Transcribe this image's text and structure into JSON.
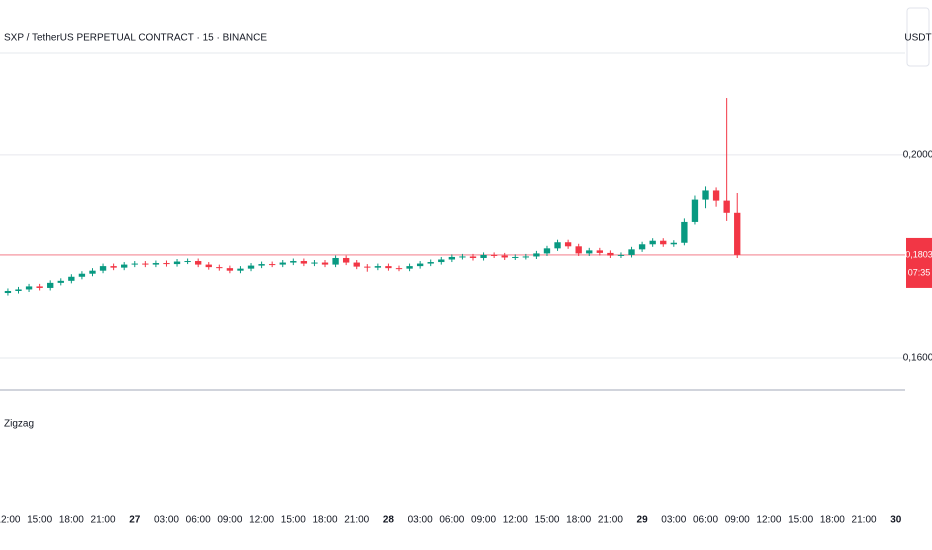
{
  "chart_data": {
    "type": "candlestick",
    "title": "SXP / TetherUS PERPETUAL CONTRACT · 15 · BINANCE",
    "currency": "USDT",
    "indicator": "Zigzag",
    "up_color": "#089981",
    "down_color": "#f23645",
    "x": [
      0,
      1,
      2,
      3,
      4,
      5,
      6,
      7,
      8,
      9,
      10,
      11,
      12,
      13,
      14,
      15,
      16,
      17,
      18,
      19,
      20,
      21,
      22,
      23,
      24,
      25,
      26,
      27,
      28,
      29,
      30,
      31,
      32,
      33,
      34,
      35,
      36,
      37,
      38,
      39,
      40,
      41,
      42,
      43,
      44,
      45,
      46,
      47,
      48,
      49,
      50,
      51,
      52,
      53,
      54,
      55,
      56,
      57,
      58,
      59,
      60,
      61,
      62,
      63,
      64,
      65,
      66,
      67,
      68,
      69
    ],
    "open": [
      0.1728,
      0.1732,
      0.1735,
      0.1741,
      0.1738,
      0.1748,
      0.1752,
      0.176,
      0.1766,
      0.1772,
      0.1781,
      0.1778,
      0.1784,
      0.1786,
      0.1784,
      0.1787,
      0.1785,
      0.179,
      0.1791,
      0.1784,
      0.1779,
      0.1777,
      0.1772,
      0.1776,
      0.1782,
      0.1785,
      0.1784,
      0.1788,
      0.1791,
      0.1786,
      0.1788,
      0.1784,
      0.1797,
      0.1788,
      0.178,
      0.1778,
      0.1781,
      0.1777,
      0.1776,
      0.1781,
      0.1786,
      0.1789,
      0.1794,
      0.1799,
      0.18,
      0.1797,
      0.1803,
      0.1802,
      0.1798,
      0.1799,
      0.18,
      0.1806,
      0.1816,
      0.1828,
      0.182,
      0.1806,
      0.1812,
      0.1807,
      0.1802,
      0.1803,
      0.1814,
      0.1824,
      0.1831,
      0.1824,
      0.1827,
      0.1868,
      0.1912,
      0.193,
      0.191,
      0.1886
    ],
    "high": [
      0.1737,
      0.174,
      0.1746,
      0.1746,
      0.1753,
      0.1757,
      0.1765,
      0.1771,
      0.1777,
      0.1786,
      0.1786,
      0.1789,
      0.1791,
      0.1791,
      0.1792,
      0.1792,
      0.1795,
      0.1796,
      0.1796,
      0.1789,
      0.1784,
      0.1782,
      0.1781,
      0.1787,
      0.179,
      0.179,
      0.1793,
      0.1796,
      0.1796,
      0.1793,
      0.1793,
      0.1802,
      0.1802,
      0.1793,
      0.1785,
      0.1786,
      0.1786,
      0.1782,
      0.1786,
      0.1791,
      0.1794,
      0.1799,
      0.1804,
      0.1805,
      0.1805,
      0.1808,
      0.1808,
      0.1807,
      0.1804,
      0.1805,
      0.1811,
      0.1821,
      0.1833,
      0.1833,
      0.1825,
      0.1817,
      0.1817,
      0.1812,
      0.1808,
      0.1819,
      0.1829,
      0.1836,
      0.1836,
      0.1832,
      0.1875,
      0.192,
      0.1938,
      0.1936,
      0.2112,
      0.1925
    ],
    "low": [
      0.1723,
      0.1727,
      0.173,
      0.1733,
      0.1733,
      0.1743,
      0.1747,
      0.1755,
      0.1761,
      0.1767,
      0.1773,
      0.1773,
      0.1779,
      0.1779,
      0.1779,
      0.178,
      0.178,
      0.1785,
      0.1779,
      0.1774,
      0.1772,
      0.1767,
      0.1767,
      0.1771,
      0.1777,
      0.1779,
      0.1779,
      0.1783,
      0.1781,
      0.1781,
      0.1779,
      0.1779,
      0.1783,
      0.1775,
      0.177,
      0.1773,
      0.1772,
      0.1771,
      0.1771,
      0.1776,
      0.1781,
      0.1784,
      0.1789,
      0.1794,
      0.1792,
      0.1792,
      0.1797,
      0.1793,
      0.1793,
      0.1794,
      0.1795,
      0.1801,
      0.1811,
      0.1815,
      0.1801,
      0.1801,
      0.1802,
      0.1797,
      0.1797,
      0.1798,
      0.1809,
      0.1819,
      0.1819,
      0.1819,
      0.1822,
      0.1863,
      0.1895,
      0.1898,
      0.187,
      0.1797
    ],
    "close": [
      0.1732,
      0.1735,
      0.1741,
      0.1738,
      0.1748,
      0.1752,
      0.176,
      0.1766,
      0.1772,
      0.1781,
      0.1778,
      0.1784,
      0.1786,
      0.1784,
      0.1787,
      0.1785,
      0.179,
      0.1791,
      0.1784,
      0.1779,
      0.1777,
      0.1772,
      0.1776,
      0.1782,
      0.1785,
      0.1784,
      0.1788,
      0.1791,
      0.1786,
      0.1788,
      0.1784,
      0.1797,
      0.1788,
      0.178,
      0.1778,
      0.1781,
      0.1777,
      0.1776,
      0.1781,
      0.1786,
      0.1789,
      0.1794,
      0.1799,
      0.18,
      0.1797,
      0.1803,
      0.1802,
      0.1798,
      0.1799,
      0.18,
      0.1806,
      0.1816,
      0.1828,
      0.182,
      0.1806,
      0.1812,
      0.1807,
      0.1802,
      0.1803,
      0.1814,
      0.1824,
      0.1831,
      0.1824,
      0.1827,
      0.1868,
      0.1912,
      0.193,
      0.191,
      0.1886,
      0.1803
    ],
    "xlim": [
      -0.75,
      84.4
    ],
    "ylim": [
      0.1537,
      0.2246
    ],
    "xticks": [
      {
        "value": 0,
        "label": "12:00"
      },
      {
        "value": 3,
        "label": "15:00"
      },
      {
        "value": 6,
        "label": "18:00"
      },
      {
        "value": 9,
        "label": "21:00"
      },
      {
        "value": 12,
        "label": "27"
      },
      {
        "value": 15,
        "label": "03:00"
      },
      {
        "value": 18,
        "label": "06:00"
      },
      {
        "value": 21,
        "label": "09:00"
      },
      {
        "value": 24,
        "label": "12:00"
      },
      {
        "value": 27,
        "label": "15:00"
      },
      {
        "value": 30,
        "label": "18:00"
      },
      {
        "value": 33,
        "label": "21:00"
      },
      {
        "value": 36,
        "label": "28"
      },
      {
        "value": 39,
        "label": "03:00"
      },
      {
        "value": 42,
        "label": "06:00"
      },
      {
        "value": 45,
        "label": "09:00"
      },
      {
        "value": 48,
        "label": "12:00"
      },
      {
        "value": 51,
        "label": "15:00"
      },
      {
        "value": 54,
        "label": "18:00"
      },
      {
        "value": 57,
        "label": "21:00"
      },
      {
        "value": 60,
        "label": "29"
      },
      {
        "value": 63,
        "label": "03:00"
      },
      {
        "value": 66,
        "label": "06:00"
      },
      {
        "value": 69,
        "label": "09:00"
      },
      {
        "value": 72,
        "label": "12:00"
      },
      {
        "value": 75,
        "label": "15:00"
      },
      {
        "value": 78,
        "label": "18:00"
      },
      {
        "value": 81,
        "label": "21:00"
      },
      {
        "value": 84,
        "label": "30"
      }
    ],
    "yticks": [
      {
        "value": 0.16,
        "label": "0,1600"
      },
      {
        "value": 0.2,
        "label": "0,2000"
      }
    ],
    "grid": true,
    "last_price": {
      "value": 0.1803,
      "label": "0,1803"
    },
    "countdown": "07:35"
  }
}
